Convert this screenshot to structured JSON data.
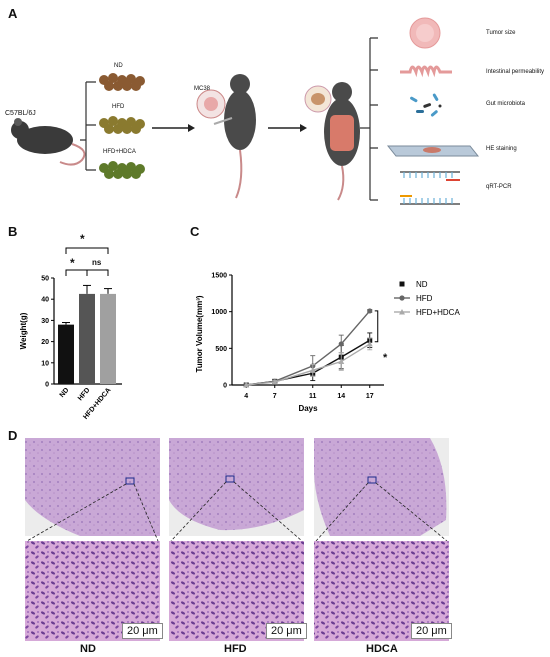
{
  "panel_a": {
    "label": "A",
    "strain": "C57BL/6J",
    "diets": [
      "ND",
      "HFD",
      "HFD+HDCA"
    ],
    "cell_line": "MC38",
    "outcomes": [
      "Tumor size",
      "Intestinal permeability",
      "Gut microbiota",
      "HE staining",
      "qRT-PCR"
    ]
  },
  "panel_b": {
    "label": "B",
    "sig_top": "*",
    "sig_left": "*",
    "sig_right": "ns"
  },
  "panel_c": {
    "label": "C",
    "sig": "*"
  },
  "panel_d": {
    "label": "D",
    "groups": [
      "ND",
      "HFD",
      "HDCA"
    ],
    "scale": "20 μm"
  },
  "chart_data": [
    {
      "type": "bar",
      "categories": [
        "ND",
        "HFD",
        "HFD+HDCA"
      ],
      "values": [
        28,
        42.5,
        42.5
      ],
      "errors": [
        1,
        4,
        2.5
      ],
      "ylabel": "Weight(g)",
      "ylim": [
        0,
        50
      ],
      "yticks": [
        "0",
        "10",
        "20",
        "30",
        "40",
        "50"
      ],
      "colors": [
        "#111111",
        "#555555",
        "#a0a0a0"
      ]
    },
    {
      "type": "line",
      "x": [
        "4",
        "7",
        "11",
        "14",
        "17"
      ],
      "xlabel": "Days",
      "ylabel": "Tumor Volume(mm³)",
      "ylim": [
        0,
        1500
      ],
      "yticks": [
        "0",
        "500",
        "1000",
        "1500"
      ],
      "legend_position": "right",
      "series": [
        {
          "name": "ND",
          "values": [
            0,
            50,
            160,
            380,
            610
          ],
          "errors": [
            0,
            20,
            100,
            160,
            100
          ],
          "color": "#111111",
          "marker": "square"
        },
        {
          "name": "HFD",
          "values": [
            0,
            50,
            260,
            560,
            1010
          ],
          "errors": [
            0,
            20,
            140,
            120,
            20
          ],
          "color": "#666666",
          "marker": "circle"
        },
        {
          "name": "HFD+HDCA",
          "values": [
            0,
            40,
            200,
            320,
            560
          ],
          "errors": [
            0,
            20,
            80,
            120,
            80
          ],
          "color": "#aaaaaa",
          "marker": "triangle"
        }
      ]
    }
  ]
}
